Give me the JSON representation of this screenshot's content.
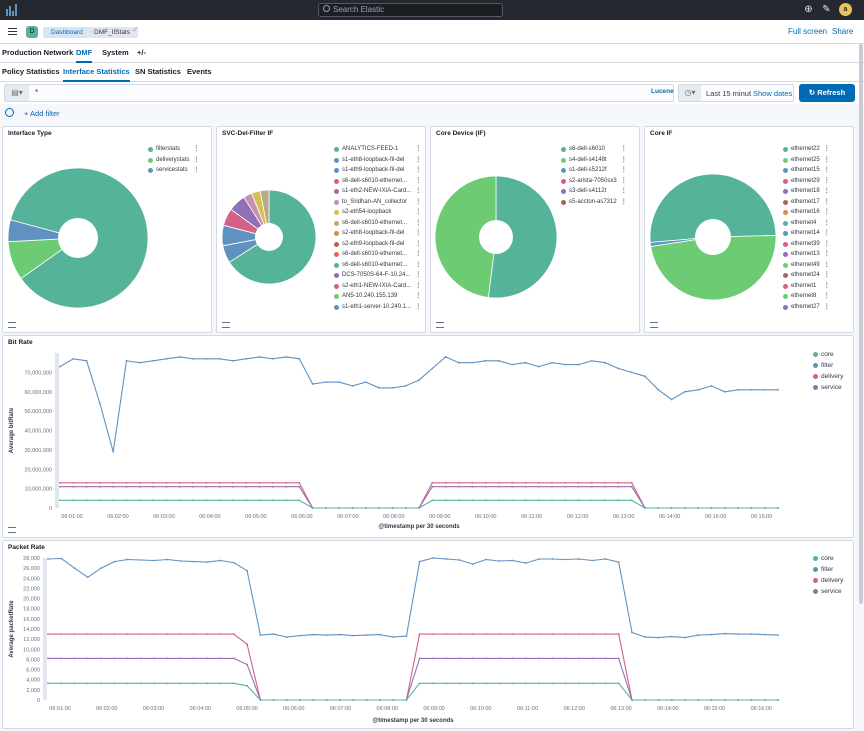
{
  "app": {
    "search_placeholder": "Search Elastic",
    "avatar_initial": "a",
    "space_initial": "D",
    "breadcrumbs": [
      "Dashboard",
      "DMF_IfStats"
    ],
    "full_screen": "Full screen",
    "share": "Share"
  },
  "nav": {
    "top_tabs": [
      "Production Network",
      "DMF",
      "System",
      "+/-"
    ],
    "sub_tabs": [
      "Policy Statistics",
      "Interface Statistics",
      "SN Statistics",
      "Events"
    ]
  },
  "query": {
    "value": "*",
    "language": "Lucene",
    "time_label": "Last 15 minut",
    "show_dates": "Show dates",
    "refresh": "Refresh",
    "add_filter": "+ Add filter"
  },
  "colors": {
    "accent": "#006bb4",
    "teal": "#54b399",
    "green": "#6dcc73",
    "blue": "#6092c0",
    "purple": "#9170b8",
    "pink": "#d36086",
    "core_series": "#54b399",
    "filter_series": "#6092c0",
    "delivery_series": "#d36086",
    "service_series": "#9170b8"
  },
  "pies": {
    "interface_type": {
      "title": "Interface Type",
      "legend": [
        {
          "label": "filterstats",
          "color": "#54b399"
        },
        {
          "label": "deliverystats",
          "color": "#6dcc73"
        },
        {
          "label": "servicestats",
          "color": "#6092c0"
        }
      ]
    },
    "svc_del_filter": {
      "title": "SVC-Del-Filter IF",
      "legend": [
        {
          "label": "ANALYTICS-FEED-1",
          "color": "#54b399"
        },
        {
          "label": "s1-eth8-loopback-fil-del",
          "color": "#6092c0"
        },
        {
          "label": "s1-eth9-loopback-fil-del",
          "color": "#6092c0"
        },
        {
          "label": "s6-dell-s6010-ethernet...",
          "color": "#d36086"
        },
        {
          "label": "s1-eth2-NEW-IXIA-Card...",
          "color": "#9170b8"
        },
        {
          "label": "to_Sridhan-AN_collector",
          "color": "#ca8eae"
        },
        {
          "label": "s2-eth54-loopback",
          "color": "#d6bf57"
        },
        {
          "label": "s6-dell-s6010-ethernet...",
          "color": "#b9a888"
        },
        {
          "label": "s2-eth8-loopback-fil-del",
          "color": "#da8b45"
        },
        {
          "label": "s2-eth9-loopback-fil-del",
          "color": "#aa6556"
        },
        {
          "label": "s6-dell-s6010-ethernet...",
          "color": "#e7664c"
        },
        {
          "label": "s6-dell-s6010-ethernet...",
          "color": "#54b399"
        },
        {
          "label": "DCS-7050S-64-F-10.24...",
          "color": "#9170b8"
        },
        {
          "label": "s2-eth1-NEW-IXIA-Card...",
          "color": "#d36086"
        },
        {
          "label": "AN5-10.240.155.139",
          "color": "#6dcc73"
        },
        {
          "label": "s1-eth1-server-10.240.1...",
          "color": "#6092c0"
        }
      ]
    },
    "core_device": {
      "title": "Core Device (IF)",
      "legend": [
        {
          "label": "s6-dell-s6010",
          "color": "#54b399"
        },
        {
          "label": "s4-dell-s4148t",
          "color": "#6dcc73"
        },
        {
          "label": "s1-dell-s5212f",
          "color": "#6092c0"
        },
        {
          "label": "s2-arista-7050sx3",
          "color": "#d36086"
        },
        {
          "label": "s3-dell-s4112t",
          "color": "#9170b8"
        },
        {
          "label": "s5-accton-as7312",
          "color": "#aa6556"
        }
      ]
    },
    "core_if": {
      "title": "Core IF",
      "legend": [
        {
          "label": "ethernet22",
          "color": "#54b399"
        },
        {
          "label": "ethernet25",
          "color": "#6dcc73"
        },
        {
          "label": "ethernet15",
          "color": "#6092c0"
        },
        {
          "label": "ethernet29",
          "color": "#d36086"
        },
        {
          "label": "ethernet18",
          "color": "#9170b8"
        },
        {
          "label": "ethernet17",
          "color": "#aa6556"
        },
        {
          "label": "ethernet16",
          "color": "#da8b45"
        },
        {
          "label": "ethernet4",
          "color": "#54b399"
        },
        {
          "label": "ethernet14",
          "color": "#6092c0"
        },
        {
          "label": "ethernet39",
          "color": "#d36086"
        },
        {
          "label": "ethernet13",
          "color": "#9170b8"
        },
        {
          "label": "ethernet49",
          "color": "#6dcc73"
        },
        {
          "label": "ethernet24",
          "color": "#aa6556"
        },
        {
          "label": "ethernet1",
          "color": "#d36086"
        },
        {
          "label": "ethernet8",
          "color": "#6dcc73"
        },
        {
          "label": "ethernet27",
          "color": "#9170b8"
        }
      ]
    }
  },
  "chart_data": [
    {
      "type": "pie",
      "title": "Interface Type",
      "labels": [
        "filterstats",
        "deliverystats",
        "servicestats"
      ],
      "values": [
        86,
        9,
        5
      ]
    },
    {
      "type": "pie",
      "title": "SVC-Del-Filter IF",
      "labels": [
        "ANALYTICS-FEED-1",
        "s1-eth8-loopback-fil-del",
        "s1-eth9-loopback-fil-del",
        "s6-dell-s6010-ethernet...",
        "s1-eth2-NEW-IXIA-Card...",
        "to_Sridhan-AN_collector",
        "s2-eth54-loopback",
        "s6-dell-s6010-ethernet..."
      ],
      "values": [
        66,
        6,
        7,
        6,
        6,
        3,
        3,
        3
      ]
    },
    {
      "type": "pie",
      "title": "Core Device (IF)",
      "labels": [
        "s6-dell-s6010",
        "s4-dell-s4148t"
      ],
      "values": [
        52,
        48
      ]
    },
    {
      "type": "pie",
      "title": "Core IF",
      "labels": [
        "ethernet22",
        "ethernet25",
        "ethernet15"
      ],
      "values": [
        51,
        48,
        1
      ]
    },
    {
      "type": "line",
      "title": "Bit Rate",
      "xlabel": "@timestamp per 30 seconds",
      "ylabel": "Average bitRate",
      "ylim": [
        0,
        80000000
      ],
      "yticks": [
        "0",
        "10,000,000",
        "20,000,000",
        "30,000,000",
        "40,000,000",
        "50,000,000",
        "60,000,000",
        "70,000,000"
      ],
      "xticks": [
        "06:01:00",
        "06:02:00",
        "06:03:00",
        "06:04:00",
        "06:05:00",
        "06:06:00",
        "06:07:00",
        "06:08:00",
        "06:09:00",
        "06:10:00",
        "06:11:00",
        "06:12:00",
        "06:13:00",
        "06:14:00",
        "06:15:00",
        "06:16:00"
      ],
      "x_start": "06:00:30",
      "x_step_seconds": 30,
      "legend": [
        "core",
        "filter",
        "delivery",
        "service"
      ],
      "series": [
        {
          "name": "filter",
          "color": "#6092c0",
          "values": [
            73,
            77,
            76,
            54,
            29,
            76,
            75,
            76,
            77,
            78,
            77,
            77,
            77,
            76,
            77,
            78,
            77,
            78,
            77,
            64,
            65,
            65,
            63,
            65,
            62,
            62,
            63,
            66,
            72,
            78,
            75,
            75,
            76,
            76,
            74,
            75,
            73,
            75,
            74,
            74,
            76,
            75,
            72,
            70,
            68,
            61,
            56,
            60,
            61,
            63,
            60,
            61,
            61,
            61,
            61
          ]
        },
        {
          "name": "delivery",
          "color": "#d36086",
          "values": [
            13,
            13,
            13,
            13,
            13,
            13,
            13,
            13,
            13,
            13,
            13,
            13,
            13,
            13,
            13,
            13,
            13,
            13,
            13,
            0,
            0,
            0,
            0,
            0,
            0,
            0,
            0,
            0,
            13,
            13,
            13,
            13,
            13,
            13,
            13,
            13,
            13,
            13,
            13,
            13,
            13,
            13,
            13,
            13,
            0,
            0,
            0,
            0,
            0,
            0,
            0,
            0,
            0,
            0,
            0
          ]
        },
        {
          "name": "service",
          "color": "#9170b8",
          "values": [
            11,
            11,
            11,
            11,
            11,
            11,
            11,
            11,
            11,
            11,
            11,
            11,
            11,
            11,
            11,
            11,
            11,
            11,
            11,
            0,
            0,
            0,
            0,
            0,
            0,
            0,
            0,
            0,
            11,
            11,
            11,
            11,
            11,
            11,
            11,
            11,
            11,
            11,
            11,
            11,
            11,
            11,
            11,
            11,
            0,
            0,
            0,
            0,
            0,
            0,
            0,
            0,
            0,
            0,
            0
          ]
        },
        {
          "name": "core",
          "color": "#54b399",
          "values": [
            4,
            4,
            4,
            4,
            4,
            4,
            4,
            4,
            4,
            4,
            4,
            4,
            4,
            4,
            4,
            4,
            4,
            4,
            4,
            0,
            0,
            0,
            0,
            0,
            0,
            0,
            0,
            0,
            4,
            4,
            4,
            4,
            4,
            4,
            4,
            4,
            4,
            4,
            4,
            4,
            4,
            4,
            4,
            4,
            0,
            0,
            0,
            0,
            0,
            0,
            0,
            0,
            0,
            0,
            0
          ]
        }
      ],
      "value_unit": "millions"
    },
    {
      "type": "line",
      "title": "Packet Rate",
      "xlabel": "@timestamp per 30 seconds",
      "ylabel": "Average packetRate",
      "ylim": [
        0,
        28000
      ],
      "yticks": [
        "0",
        "2,000",
        "4,000",
        "6,000",
        "8,000",
        "10,000",
        "12,000",
        "14,000",
        "16,000",
        "18,000",
        "20,000",
        "22,000",
        "24,000",
        "26,000",
        "28,000"
      ],
      "xticks": [
        "06:01:00",
        "06:02:00",
        "06:03:00",
        "06:04:00",
        "06:05:00",
        "06:06:00",
        "06:07:00",
        "06:08:00",
        "06:09:00",
        "06:10:00",
        "06:11:00",
        "06:12:00",
        "06:13:00",
        "06:14:00",
        "06:15:00",
        "06:16:00"
      ],
      "x_start": "06:01:00",
      "x_step_seconds": 30,
      "legend": [
        "core",
        "filter",
        "delivery",
        "service"
      ],
      "series": [
        {
          "name": "filter",
          "color": "#6092c0",
          "values": [
            27800,
            27900,
            26000,
            24200,
            26000,
            27300,
            27700,
            27600,
            27500,
            27700,
            27400,
            27300,
            27200,
            27500,
            27100,
            25500,
            12800,
            13000,
            12400,
            12700,
            12900,
            12800,
            12900,
            12700,
            12800,
            12900,
            12400,
            12600,
            27300,
            28000,
            27800,
            27600,
            26800,
            27700,
            27400,
            27500,
            27000,
            27800,
            27800,
            27700,
            27800,
            27500,
            27800,
            27200,
            13300,
            12400,
            12300,
            12500,
            12300,
            12800,
            12900,
            13100,
            13000,
            13000,
            12900,
            12800
          ]
        },
        {
          "name": "delivery",
          "color": "#d36086",
          "values": [
            13000,
            13000,
            13000,
            13000,
            13000,
            13000,
            13000,
            13000,
            13000,
            13000,
            13000,
            13000,
            13000,
            13000,
            13000,
            11000,
            0,
            0,
            0,
            0,
            0,
            0,
            0,
            0,
            0,
            0,
            0,
            0,
            13000,
            13000,
            13000,
            13000,
            13000,
            13000,
            13000,
            13000,
            13000,
            13000,
            13000,
            13000,
            13000,
            13000,
            13000,
            13000,
            0,
            0,
            0,
            0,
            0,
            0,
            0,
            0,
            0,
            0,
            0,
            0
          ]
        },
        {
          "name": "service",
          "color": "#9170b8",
          "values": [
            8200,
            8200,
            8200,
            8200,
            8200,
            8200,
            8200,
            8200,
            8200,
            8200,
            8200,
            8200,
            8200,
            8200,
            8200,
            7000,
            0,
            0,
            0,
            0,
            0,
            0,
            0,
            0,
            0,
            0,
            0,
            0,
            8200,
            8200,
            8200,
            8200,
            8200,
            8200,
            8200,
            8200,
            8200,
            8200,
            8200,
            8200,
            8200,
            8200,
            8200,
            8200,
            0,
            0,
            0,
            0,
            0,
            0,
            0,
            0,
            0,
            0,
            0,
            0
          ]
        },
        {
          "name": "core",
          "color": "#54b399",
          "values": [
            3300,
            3300,
            3300,
            3300,
            3300,
            3300,
            3300,
            3300,
            3300,
            3300,
            3300,
            3300,
            3300,
            3300,
            3300,
            2800,
            0,
            0,
            0,
            0,
            0,
            0,
            0,
            0,
            0,
            0,
            0,
            0,
            3300,
            3300,
            3300,
            3300,
            3300,
            3300,
            3300,
            3300,
            3300,
            3300,
            3300,
            3300,
            3300,
            3300,
            3300,
            3300,
            0,
            0,
            0,
            0,
            0,
            0,
            0,
            0,
            0,
            0,
            0,
            0
          ]
        }
      ]
    }
  ]
}
